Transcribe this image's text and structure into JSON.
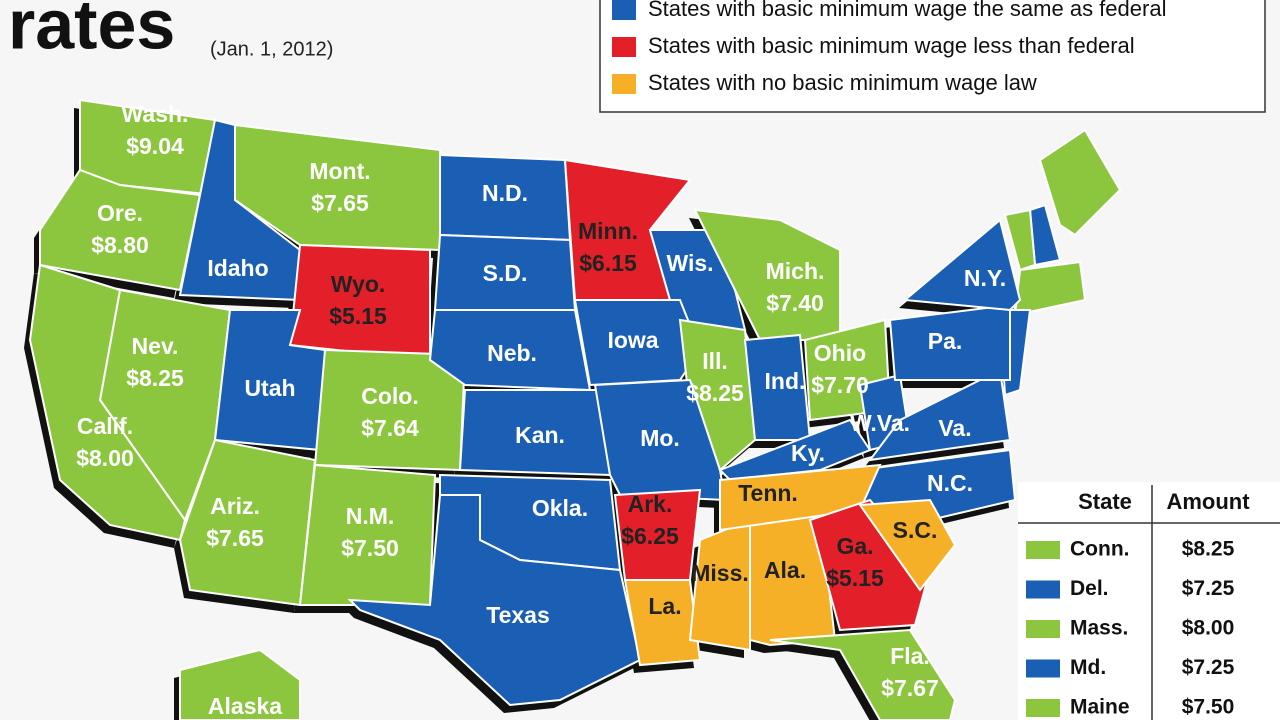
{
  "header": {
    "title": "rates",
    "date": "(Jan. 1, 2012)"
  },
  "legend": [
    {
      "label": "States with basic minimum wage the same as federal",
      "color": "#1a5fb4"
    },
    {
      "label": "States with basic minimum wage less than federal",
      "color": "#e3202a"
    },
    {
      "label": "States with no basic minimum wage law",
      "color": "#f5b027"
    }
  ],
  "states": [
    {
      "label": "Wash.",
      "wage": "$9.04",
      "color": "#8cc63f"
    },
    {
      "label": "Ore.",
      "wage": "$8.80",
      "color": "#8cc63f"
    },
    {
      "label": "Idaho",
      "color": "#1a5fb4"
    },
    {
      "label": "Mont.",
      "wage": "$7.65",
      "color": "#8cc63f"
    },
    {
      "label": "Wyo.",
      "wage": "$5.15",
      "color": "#e3202a"
    },
    {
      "label": "N.D.",
      "color": "#1a5fb4"
    },
    {
      "label": "S.D.",
      "color": "#1a5fb4"
    },
    {
      "label": "Minn.",
      "wage": "$6.15",
      "color": "#e3202a"
    },
    {
      "label": "Wis.",
      "color": "#1a5fb4"
    },
    {
      "label": "Mich.",
      "wage": "$7.40",
      "color": "#8cc63f"
    },
    {
      "label": "Nev.",
      "wage": "$8.25",
      "color": "#8cc63f"
    },
    {
      "label": "Calif.",
      "wage": "$8.00",
      "color": "#8cc63f"
    },
    {
      "label": "Utah",
      "color": "#1a5fb4"
    },
    {
      "label": "Colo.",
      "wage": "$7.64",
      "color": "#8cc63f"
    },
    {
      "label": "Neb.",
      "color": "#1a5fb4"
    },
    {
      "label": "Iowa",
      "color": "#1a5fb4"
    },
    {
      "label": "Ill.",
      "wage": "$8.25",
      "color": "#8cc63f"
    },
    {
      "label": "Ind.",
      "color": "#1a5fb4"
    },
    {
      "label": "Ohio",
      "wage": "$7.70",
      "color": "#8cc63f"
    },
    {
      "label": "Kan.",
      "color": "#1a5fb4"
    },
    {
      "label": "Mo.",
      "color": "#1a5fb4"
    },
    {
      "label": "Ky.",
      "color": "#1a5fb4"
    },
    {
      "label": "W.Va.",
      "color": "#1a5fb4"
    },
    {
      "label": "Va.",
      "color": "#1a5fb4"
    },
    {
      "label": "Pa.",
      "color": "#1a5fb4"
    },
    {
      "label": "N.Y.",
      "color": "#1a5fb4"
    },
    {
      "label": "N.C.",
      "color": "#1a5fb4"
    },
    {
      "label": "Ariz.",
      "wage": "$7.65",
      "color": "#8cc63f"
    },
    {
      "label": "N.M.",
      "wage": "$7.50",
      "color": "#8cc63f"
    },
    {
      "label": "Okla.",
      "color": "#1a5fb4"
    },
    {
      "label": "Texas",
      "color": "#1a5fb4"
    },
    {
      "label": "Ark.",
      "wage": "$6.25",
      "color": "#e3202a"
    },
    {
      "label": "La.",
      "color": "#f5b027"
    },
    {
      "label": "Miss.",
      "color": "#f5b027"
    },
    {
      "label": "Ala.",
      "color": "#f5b027"
    },
    {
      "label": "Tenn.",
      "color": "#f5b027"
    },
    {
      "label": "Ga.",
      "wage": "$5.15",
      "color": "#e3202a"
    },
    {
      "label": "S.C.",
      "color": "#f5b027"
    },
    {
      "label": "Fla.",
      "wage": "$7.67",
      "color": "#8cc63f"
    },
    {
      "label": "Alaska",
      "color": "#8cc63f"
    }
  ],
  "table": {
    "header": [
      "State",
      "Amount"
    ],
    "rows": [
      {
        "state": "Conn.",
        "amount": "$8.25",
        "color": "#8cc63f"
      },
      {
        "state": "Del.",
        "amount": "$7.25",
        "color": "#1a5fb4"
      },
      {
        "state": "Mass.",
        "amount": "$8.00",
        "color": "#8cc63f"
      },
      {
        "state": "Md.",
        "amount": "$7.25",
        "color": "#1a5fb4"
      },
      {
        "state": "Maine",
        "amount": "$7.50",
        "color": "#8cc63f"
      }
    ]
  }
}
